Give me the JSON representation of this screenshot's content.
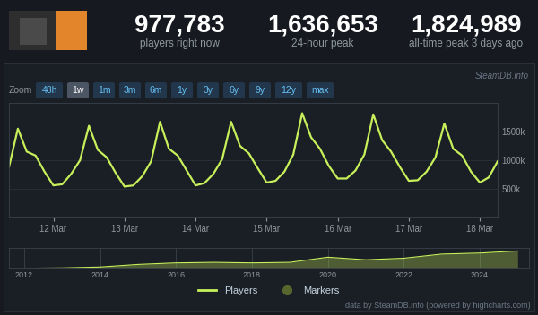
{
  "header": {
    "stats": [
      {
        "value": "977,783",
        "label": "players right now"
      },
      {
        "value": "1,636,653",
        "label": "24-hour peak"
      },
      {
        "value": "1,824,989",
        "label": "all-time peak 3 days ago"
      }
    ]
  },
  "watermark": "SteamDB.info",
  "zoom": {
    "label": "Zoom",
    "buttons": [
      "48h",
      "1w",
      "1m",
      "3m",
      "6m",
      "1y",
      "3y",
      "6y",
      "9y",
      "12y",
      "max"
    ],
    "selected": "1w"
  },
  "chart_data": [
    {
      "type": "line",
      "categories": [
        null,
        null,
        null,
        null,
        null,
        "12 Mar",
        null,
        null,
        null,
        null,
        null,
        null,
        null,
        "13 Mar",
        null,
        null,
        null,
        null,
        null,
        null,
        null,
        "14 Mar",
        null,
        null,
        null,
        null,
        null,
        null,
        null,
        "15 Mar",
        null,
        null,
        null,
        null,
        null,
        null,
        null,
        "16 Mar",
        null,
        null,
        null,
        null,
        null,
        null,
        null,
        "17 Mar",
        null,
        null,
        null,
        null,
        null,
        null,
        null,
        "18 Mar",
        null,
        null
      ],
      "series": [
        {
          "name": "Players",
          "color": "#c7f05a",
          "values": [
            880000,
            1550000,
            1150000,
            1080000,
            800000,
            560000,
            580000,
            760000,
            1000000,
            1600000,
            1180000,
            1050000,
            780000,
            540000,
            560000,
            720000,
            980000,
            1670000,
            1200000,
            1080000,
            820000,
            560000,
            600000,
            760000,
            1020000,
            1670000,
            1250000,
            1120000,
            860000,
            610000,
            640000,
            800000,
            1100000,
            1820000,
            1400000,
            1200000,
            900000,
            680000,
            680000,
            820000,
            1100000,
            1800000,
            1350000,
            1150000,
            880000,
            640000,
            650000,
            800000,
            1050000,
            1640000,
            1200000,
            1080000,
            800000,
            610000,
            700000,
            980000
          ]
        }
      ],
      "ylim": [
        0,
        2000000
      ],
      "yticks": [
        {
          "value": 500000,
          "label": "500k"
        },
        {
          "value": 1000000,
          "label": "1000k"
        },
        {
          "value": 1500000,
          "label": "1500k"
        }
      ],
      "grid": true
    },
    {
      "type": "area",
      "x": [
        2012,
        2013,
        2014,
        2015,
        2016,
        2017,
        2018,
        2019,
        2020,
        2021,
        2022,
        2023,
        2024,
        2025
      ],
      "values": [
        30000,
        60000,
        150000,
        400000,
        550000,
        600000,
        550000,
        600000,
        1100000,
        850000,
        1000000,
        1400000,
        1500000,
        1700000
      ],
      "color": "#c7f05a",
      "xlim": [
        2011.6,
        2025.3
      ],
      "ylim": [
        0,
        2000000
      ],
      "xticks": [
        2012,
        2014,
        2016,
        2018,
        2020,
        2022,
        2024
      ],
      "grid": true,
      "tick_labels": "x"
    }
  ],
  "legend_extra": {
    "name": "Markers",
    "color": "#56682e"
  },
  "footer": "data by SteamDB.info (powered by highcharts.com)"
}
